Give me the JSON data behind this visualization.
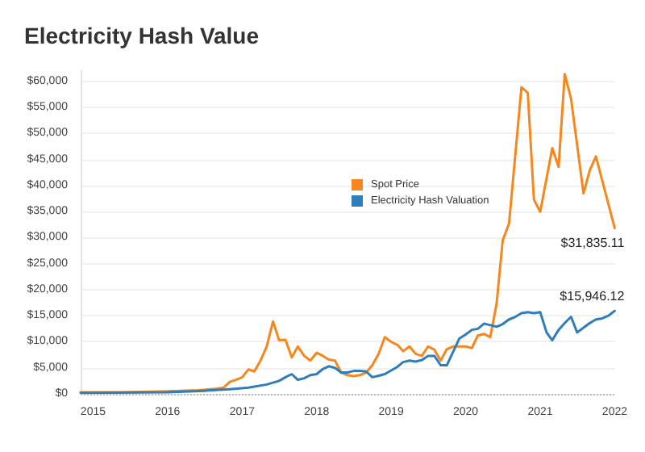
{
  "chart_data": {
    "type": "line",
    "title": "Electricity Hash Value",
    "series": [
      {
        "name": "Spot Price",
        "color": "#f7861c",
        "x": [
          "2014-11",
          "2015-06",
          "2016-01",
          "2016-06",
          "2016-09",
          "2016-10",
          "2016-11",
          "2016-12",
          "2017-01",
          "2017-02",
          "2017-03",
          "2017-04",
          "2017-05",
          "2017-06",
          "2017-07",
          "2017-08",
          "2017-09",
          "2017-10",
          "2017-11",
          "2017-12",
          "2018-01",
          "2018-02",
          "2018-03",
          "2018-04",
          "2018-05",
          "2018-06",
          "2018-07",
          "2018-08",
          "2018-09",
          "2018-10",
          "2018-11",
          "2018-12",
          "2019-01",
          "2019-02",
          "2019-03",
          "2019-04",
          "2019-05",
          "2019-06",
          "2019-07",
          "2019-08",
          "2019-09",
          "2019-10",
          "2019-11",
          "2020-01",
          "2020-02",
          "2020-03",
          "2020-04",
          "2020-05",
          "2020-06",
          "2020-07",
          "2020-08",
          "2020-10",
          "2020-11",
          "2020-12",
          "2021-01",
          "2021-03",
          "2021-04",
          "2021-05",
          "2021-06",
          "2021-08",
          "2021-09",
          "2021-10",
          "2022-01"
        ],
        "values": [
          300,
          300,
          500,
          700,
          1000,
          1200,
          2300,
          2700,
          3200,
          4700,
          4300,
          6400,
          9100,
          13900,
          10300,
          10400,
          7000,
          9100,
          7300,
          6400,
          7900,
          7300,
          6600,
          6400,
          4100,
          3600,
          3400,
          3600,
          4100,
          5500,
          7700,
          10900,
          10000,
          9400,
          8200,
          9100,
          7700,
          7300,
          9100,
          8500,
          6400,
          8600,
          9100,
          9100,
          8800,
          11200,
          11500,
          10900,
          17300,
          29500,
          32700,
          58900,
          57800,
          37300,
          35000,
          47200,
          43600,
          61400,
          56700,
          38500,
          43000,
          45600,
          31835.11
        ],
        "value_labels": [
          null,
          null,
          null,
          null,
          null,
          null,
          null,
          null,
          null,
          null,
          null,
          null,
          null,
          null,
          null,
          null,
          null,
          null,
          null,
          null,
          null,
          null,
          null,
          null,
          null,
          null,
          null,
          null,
          null,
          null,
          null,
          null,
          null,
          null,
          null,
          null,
          null,
          null,
          null,
          null,
          null,
          null,
          null,
          null,
          null,
          null,
          null,
          null,
          null,
          null,
          null,
          null,
          null,
          null,
          null,
          null,
          null,
          null,
          null,
          null,
          null,
          null,
          "$31,835.11"
        ]
      },
      {
        "name": "Electricity Hash Valuation",
        "color": "#2f7ebc",
        "x": [
          "2014-11",
          "2016-01",
          "2016-07",
          "2016-11",
          "2017-02",
          "2017-05",
          "2017-07",
          "2017-08",
          "2017-09",
          "2017-10",
          "2017-11",
          "2017-12",
          "2018-01",
          "2018-02",
          "2018-03",
          "2018-04",
          "2018-05",
          "2018-06",
          "2018-07",
          "2018-08",
          "2018-09",
          "2018-10",
          "2018-11",
          "2018-12",
          "2019-01",
          "2019-02",
          "2019-03",
          "2019-04",
          "2019-05",
          "2019-06",
          "2019-07",
          "2019-08",
          "2019-09",
          "2019-10",
          "2019-12",
          "2020-01",
          "2020-02",
          "2020-03",
          "2020-04",
          "2020-05",
          "2020-06",
          "2020-07",
          "2020-08",
          "2020-09",
          "2020-10",
          "2020-11",
          "2020-12",
          "2021-01",
          "2021-02",
          "2021-03",
          "2021-04",
          "2021-05",
          "2021-06",
          "2021-07",
          "2021-08",
          "2021-09",
          "2021-10",
          "2021-11",
          "2021-12",
          "2022-01"
        ],
        "values": [
          200,
          300,
          600,
          900,
          1200,
          1800,
          2500,
          3200,
          3800,
          2700,
          3000,
          3600,
          3800,
          4800,
          5300,
          5000,
          4100,
          4100,
          4400,
          4400,
          4300,
          3200,
          3500,
          3800,
          4500,
          5200,
          6100,
          6400,
          6200,
          6500,
          7300,
          7300,
          5500,
          5500,
          10600,
          11400,
          12300,
          12500,
          13500,
          13200,
          12900,
          13400,
          14300,
          14800,
          15500,
          15700,
          15500,
          15700,
          11800,
          10300,
          12300,
          13600,
          14800,
          11800,
          12700,
          13600,
          14300,
          14500,
          15000,
          15946.12
        ],
        "value_labels": [
          null,
          null,
          null,
          null,
          null,
          null,
          null,
          null,
          null,
          null,
          null,
          null,
          null,
          null,
          null,
          null,
          null,
          null,
          null,
          null,
          null,
          null,
          null,
          null,
          null,
          null,
          null,
          null,
          null,
          null,
          null,
          null,
          null,
          null,
          null,
          null,
          null,
          null,
          null,
          null,
          null,
          null,
          null,
          null,
          null,
          null,
          null,
          null,
          null,
          null,
          null,
          null,
          null,
          null,
          null,
          null,
          null,
          null,
          null,
          "$15,946.12"
        ]
      }
    ],
    "xlim": [
      "2014-11",
      "2022-01"
    ],
    "xticks": [
      "2015",
      "2016",
      "2017",
      "2018",
      "2019",
      "2020",
      "2021",
      "2022"
    ],
    "ylim": [
      0,
      62000
    ],
    "yticks": [
      {
        "value": 0,
        "label": "$0"
      },
      {
        "value": 5000,
        "label": "$5,000"
      },
      {
        "value": 10000,
        "label": "$10,000"
      },
      {
        "value": 15000,
        "label": "$15,000"
      },
      {
        "value": 20000,
        "label": "$20,000"
      },
      {
        "value": 25000,
        "label": "$25,000"
      },
      {
        "value": 30000,
        "label": "$30,000"
      },
      {
        "value": 35000,
        "label": "$35,000"
      },
      {
        "value": 40000,
        "label": "$40,000"
      },
      {
        "value": 45000,
        "label": "$45,000"
      },
      {
        "value": 50000,
        "label": "$50,000"
      },
      {
        "value": 55000,
        "label": "$55,000"
      },
      {
        "value": 60000,
        "label": "$60,000"
      }
    ],
    "ref_lines": [
      {
        "axis": "y",
        "value": 0,
        "line_style": "dotted",
        "color": "#bbbbbb"
      }
    ],
    "grid": "y",
    "legend": "right",
    "marker": "none",
    "line_style": "solid"
  }
}
